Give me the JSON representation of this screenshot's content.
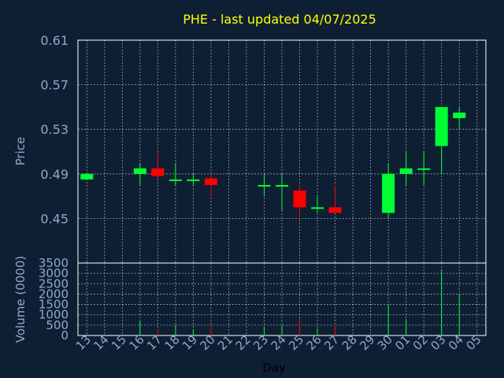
{
  "chart_data": {
    "type": "candlestick",
    "title": "PHE - last updated 04/07/2025",
    "xlabel": "Day",
    "price_panel": {
      "ylabel": "Price",
      "ylim": [
        0.41,
        0.61
      ],
      "yticks": [
        "0.61",
        "0.57",
        "0.53",
        "0.49",
        "0.45"
      ],
      "grid": true
    },
    "volume_panel": {
      "ylabel": "Volume (0000)",
      "ylim": [
        0,
        3500
      ],
      "yticks": [
        "3500",
        "3000",
        "2500",
        "2000",
        "1500",
        "1000",
        "500",
        "0"
      ],
      "grid": true
    },
    "x_labels": [
      "13",
      "14",
      "15",
      "16",
      "17",
      "18",
      "19",
      "20",
      "21",
      "22",
      "23",
      "24",
      "25",
      "26",
      "27",
      "28",
      "29",
      "30",
      "01",
      "02",
      "03",
      "04",
      "05"
    ],
    "candles": [
      {
        "day": "13",
        "open": 0.485,
        "close": 0.49,
        "high": 0.49,
        "low": 0.485,
        "volume": 0
      },
      {
        "day": "16",
        "open": 0.49,
        "close": 0.495,
        "high": 0.5,
        "low": 0.48,
        "volume": 700
      },
      {
        "day": "17",
        "open": 0.495,
        "close": 0.488,
        "high": 0.51,
        "low": 0.485,
        "volume": 300
      },
      {
        "day": "18",
        "open": 0.484,
        "close": 0.485,
        "high": 0.5,
        "low": 0.48,
        "volume": 500
      },
      {
        "day": "19",
        "open": 0.484,
        "close": 0.485,
        "high": 0.49,
        "low": 0.48,
        "volume": 300
      },
      {
        "day": "20",
        "open": 0.486,
        "close": 0.48,
        "high": 0.49,
        "low": 0.47,
        "volume": 500
      },
      {
        "day": "23",
        "open": 0.479,
        "close": 0.48,
        "high": 0.49,
        "low": 0.47,
        "volume": 400
      },
      {
        "day": "24",
        "open": 0.479,
        "close": 0.48,
        "high": 0.49,
        "low": 0.457,
        "volume": 500
      },
      {
        "day": "25",
        "open": 0.475,
        "close": 0.46,
        "high": 0.48,
        "low": 0.45,
        "volume": 850
      },
      {
        "day": "26",
        "open": 0.459,
        "close": 0.46,
        "high": 0.47,
        "low": 0.455,
        "volume": 350
      },
      {
        "day": "27",
        "open": 0.46,
        "close": 0.455,
        "high": 0.48,
        "low": 0.455,
        "volume": 450
      },
      {
        "day": "30",
        "open": 0.455,
        "close": 0.49,
        "high": 0.5,
        "low": 0.45,
        "volume": 1450
      },
      {
        "day": "01",
        "open": 0.49,
        "close": 0.495,
        "high": 0.51,
        "low": 0.48,
        "volume": 800
      },
      {
        "day": "02",
        "open": 0.494,
        "close": 0.495,
        "high": 0.51,
        "low": 0.48,
        "volume": 0
      },
      {
        "day": "03",
        "open": 0.515,
        "close": 0.55,
        "high": 0.55,
        "low": 0.49,
        "volume": 3200
      },
      {
        "day": "04",
        "open": 0.54,
        "close": 0.545,
        "high": 0.55,
        "low": 0.53,
        "volume": 2000
      }
    ],
    "colors": {
      "background": "#0f1f33",
      "up": "#00ff33",
      "down": "#ff0000",
      "title": "#ffff00",
      "axis_text": "#8fa9c9",
      "grid": "#cfd8e3",
      "frame": "#ffffff"
    }
  }
}
